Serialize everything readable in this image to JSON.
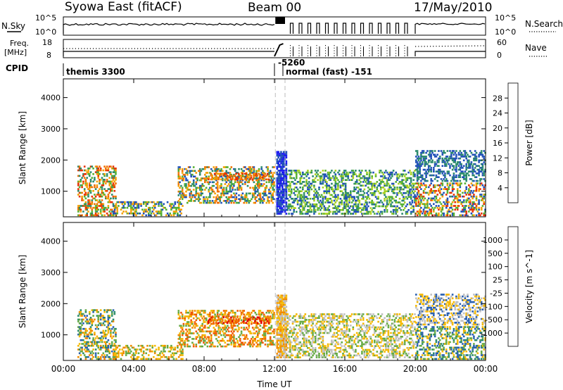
{
  "header": {
    "title": "Syowa East (fitACF)",
    "beam": "Beam 00",
    "date": "17/May/2010"
  },
  "top_panels": {
    "nsky_label": "N.Sky",
    "nsky_ticks": [
      "10^5",
      "10^0"
    ],
    "nsearch_label": "N.Search",
    "nsearch_ticks": [
      "10^5",
      "10^0"
    ],
    "freq_label": "Freq.",
    "freq_unit": "[MHz]",
    "freq_ticks": [
      "18",
      "8"
    ],
    "nave_label": "Nave",
    "nave_ticks": [
      "60",
      "0"
    ],
    "cpid_label": "CPID",
    "cpid_entries": [
      "themis 3300",
      "-5260",
      "normal (fast) -151"
    ]
  },
  "chart_data": [
    {
      "type": "heatmap",
      "name": "power-panel",
      "xlabel": "Time UT",
      "ylabel": "Slant Range [km]",
      "x_ticks": [
        "00:00",
        "04:00",
        "08:00",
        "12:00",
        "16:00",
        "20:00",
        "00:00"
      ],
      "xlim": [
        0,
        24
      ],
      "y_ticks": [
        "1000",
        "2000",
        "3000",
        "4000"
      ],
      "ylim": [
        180,
        4600
      ],
      "colorbar": {
        "label": "Power [dB]",
        "ticks": [
          "4",
          "8",
          "12",
          "16",
          "20",
          "24",
          "28"
        ],
        "colors": [
          "#1818f0",
          "#2050b8",
          "#2a8a6a",
          "#55b030",
          "#a8d020",
          "#f0d000",
          "#f4a000",
          "#f07000",
          "#e83000",
          "#e00000"
        ]
      },
      "regions": [
        {
          "t": [
            0.8,
            3.0
          ],
          "r": [
            200,
            1800
          ],
          "c": [
            "#e83000",
            "#f07000",
            "#f4a000",
            "#55b030",
            "#2a8a6a"
          ]
        },
        {
          "t": [
            2.8,
            6.8
          ],
          "r": [
            200,
            700
          ],
          "c": [
            "#2050b8",
            "#55b030",
            "#f4a000"
          ]
        },
        {
          "t": [
            6.5,
            12.0
          ],
          "r": [
            600,
            1800
          ],
          "c": [
            "#2050b8",
            "#55b030",
            "#f07000",
            "#f4a000",
            "#2a8a6a"
          ]
        },
        {
          "t": [
            8.2,
            11.7
          ],
          "r": [
            1350,
            1600
          ],
          "c": [
            "#e83000",
            "#f07000",
            "#f4a000"
          ]
        },
        {
          "t": [
            12.1,
            12.7
          ],
          "r": [
            250,
            2300
          ],
          "c": [
            "#1818f0",
            "#2050b8"
          ]
        },
        {
          "t": [
            12.7,
            20.0
          ],
          "r": [
            250,
            1700
          ],
          "c": [
            "#2050b8",
            "#2a8a6a",
            "#55b030",
            "#a8d020"
          ]
        },
        {
          "t": [
            20.0,
            24.0
          ],
          "r": [
            200,
            1300
          ],
          "c": [
            "#2050b8",
            "#55b030",
            "#f4a000",
            "#e83000"
          ]
        },
        {
          "t": [
            20.0,
            24.0
          ],
          "r": [
            1300,
            2300
          ],
          "c": [
            "#2050b8",
            "#2a8a6a"
          ]
        }
      ]
    },
    {
      "type": "heatmap",
      "name": "velocity-panel",
      "xlabel": "Time UT",
      "ylabel": "Slant Range [km]",
      "x_ticks": [
        "00:00",
        "04:00",
        "08:00",
        "12:00",
        "16:00",
        "20:00",
        "00:00"
      ],
      "xlim": [
        0,
        24
      ],
      "y_ticks": [
        "1000",
        "2000",
        "3000",
        "4000"
      ],
      "ylim": [
        180,
        4600
      ],
      "colorbar": {
        "label": "Velocity [m s^-1]",
        "ticks": [
          "1000",
          "500",
          "100",
          "25",
          "-25",
          "-100",
          "-500",
          "-1000"
        ],
        "colors": [
          "#1830d8",
          "#2a60b0",
          "#2a8a6a",
          "#66aa44",
          "#c0c0c0",
          "#f4b800",
          "#f08a00",
          "#f05800",
          "#e00000"
        ]
      },
      "regions": [
        {
          "t": [
            0.8,
            3.0
          ],
          "r": [
            200,
            1800
          ],
          "c": [
            "#2a8a6a",
            "#66aa44",
            "#f4b800",
            "#f08a00",
            "#2a60b0"
          ]
        },
        {
          "t": [
            2.8,
            6.8
          ],
          "r": [
            200,
            700
          ],
          "c": [
            "#f4b800",
            "#f08a00",
            "#66aa44"
          ]
        },
        {
          "t": [
            6.5,
            12.0
          ],
          "r": [
            600,
            1800
          ],
          "c": [
            "#f08a00",
            "#f05800",
            "#f4b800",
            "#66aa44"
          ]
        },
        {
          "t": [
            8.2,
            11.7
          ],
          "r": [
            1350,
            1600
          ],
          "c": [
            "#f05800",
            "#f08a00",
            "#e00000"
          ]
        },
        {
          "t": [
            12.1,
            12.7
          ],
          "r": [
            250,
            2300
          ],
          "c": [
            "#c0c0c0",
            "#f4b800",
            "#f08a00"
          ]
        },
        {
          "t": [
            12.7,
            20.0
          ],
          "r": [
            250,
            1700
          ],
          "c": [
            "#c0c0c0",
            "#f4b800",
            "#66aa44"
          ]
        },
        {
          "t": [
            20.0,
            24.0
          ],
          "r": [
            200,
            1300
          ],
          "c": [
            "#2a8a6a",
            "#2a60b0",
            "#f4b800",
            "#66aa44"
          ]
        },
        {
          "t": [
            20.0,
            24.0
          ],
          "r": [
            1300,
            2300
          ],
          "c": [
            "#c0c0c0",
            "#f4b800",
            "#2a60b0"
          ]
        }
      ]
    }
  ]
}
